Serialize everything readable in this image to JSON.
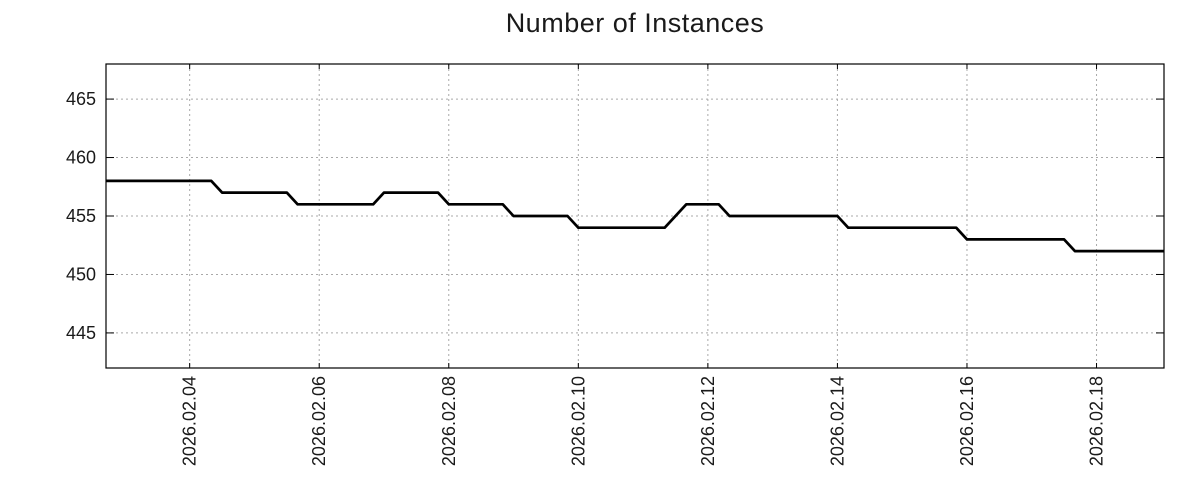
{
  "chart_data": {
    "type": "line",
    "title": "Number of Instances",
    "xlabel": "",
    "ylabel": "",
    "grid": true,
    "legend_position": "none",
    "xlim": [
      "2026-02-02 17:00",
      "2026-02-19 01:00"
    ],
    "ylim": [
      442,
      468
    ],
    "x_ticks": [
      {
        "date": "2026-02-04",
        "label": "2026.02.04"
      },
      {
        "date": "2026-02-06",
        "label": "2026.02.06"
      },
      {
        "date": "2026-02-08",
        "label": "2026.02.08"
      },
      {
        "date": "2026-02-10",
        "label": "2026.02.10"
      },
      {
        "date": "2026-02-12",
        "label": "2026.02.12"
      },
      {
        "date": "2026-02-14",
        "label": "2026.02.14"
      },
      {
        "date": "2026-02-16",
        "label": "2026.02.16"
      },
      {
        "date": "2026-02-18",
        "label": "2026.02.18"
      }
    ],
    "y_ticks": [
      445,
      450,
      455,
      460,
      465
    ],
    "series": [
      {
        "name": "Number of Instances",
        "color": "#000000",
        "points": [
          [
            "2026-02-02 17:00",
            458
          ],
          [
            "2026-02-04 08:00",
            458
          ],
          [
            "2026-02-04 12:00",
            457
          ],
          [
            "2026-02-05 12:00",
            457
          ],
          [
            "2026-02-05 16:00",
            456
          ],
          [
            "2026-02-06 20:00",
            456
          ],
          [
            "2026-02-07 00:00",
            457
          ],
          [
            "2026-02-07 20:00",
            457
          ],
          [
            "2026-02-08 00:00",
            456
          ],
          [
            "2026-02-08 20:00",
            456
          ],
          [
            "2026-02-09 00:00",
            455
          ],
          [
            "2026-02-09 20:00",
            455
          ],
          [
            "2026-02-10 00:00",
            454
          ],
          [
            "2026-02-11 08:00",
            454
          ],
          [
            "2026-02-11 16:00",
            456
          ],
          [
            "2026-02-12 04:00",
            456
          ],
          [
            "2026-02-12 08:00",
            455
          ],
          [
            "2026-02-14 00:00",
            455
          ],
          [
            "2026-02-14 04:00",
            454
          ],
          [
            "2026-02-15 20:00",
            454
          ],
          [
            "2026-02-16 00:00",
            453
          ],
          [
            "2026-02-17 12:00",
            453
          ],
          [
            "2026-02-17 16:00",
            452
          ],
          [
            "2026-02-19 01:00",
            452
          ]
        ]
      }
    ],
    "colors": {
      "line": "#000000",
      "grid": "#a9a9a9",
      "frame": "#000000",
      "text": "#1a1a1a",
      "background": "#ffffff"
    }
  }
}
